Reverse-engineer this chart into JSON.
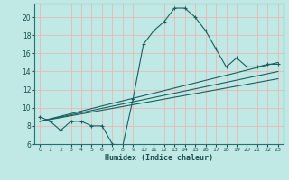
{
  "xlabel": "Humidex (Indice chaleur)",
  "background_color": "#c0e8e4",
  "grid_color": "#e8b8b8",
  "line_color": "#1a6060",
  "xlim": [
    -0.5,
    23.5
  ],
  "ylim": [
    6,
    21.5
  ],
  "yticks": [
    6,
    8,
    10,
    12,
    14,
    16,
    18,
    20
  ],
  "xticks": [
    0,
    1,
    2,
    3,
    4,
    5,
    6,
    7,
    8,
    9,
    10,
    11,
    12,
    13,
    14,
    15,
    16,
    17,
    18,
    19,
    20,
    21,
    22,
    23
  ],
  "main_x": [
    0,
    1,
    2,
    3,
    4,
    5,
    6,
    7,
    8,
    9,
    10,
    11,
    12,
    13,
    14,
    15,
    16,
    17,
    18,
    19,
    20,
    21,
    22,
    23
  ],
  "main_y": [
    9.0,
    8.5,
    7.5,
    8.5,
    8.5,
    8.0,
    8.0,
    6.0,
    5.8,
    11.0,
    17.0,
    18.5,
    19.5,
    21.0,
    21.0,
    20.0,
    18.5,
    16.5,
    14.5,
    15.5,
    14.5,
    14.5,
    14.8,
    14.8
  ],
  "line1_x": [
    0,
    23
  ],
  "line1_y": [
    8.5,
    15.0
  ],
  "line2_x": [
    0,
    23
  ],
  "line2_y": [
    8.5,
    14.0
  ],
  "line3_x": [
    0,
    23
  ],
  "line3_y": [
    8.5,
    13.2
  ]
}
